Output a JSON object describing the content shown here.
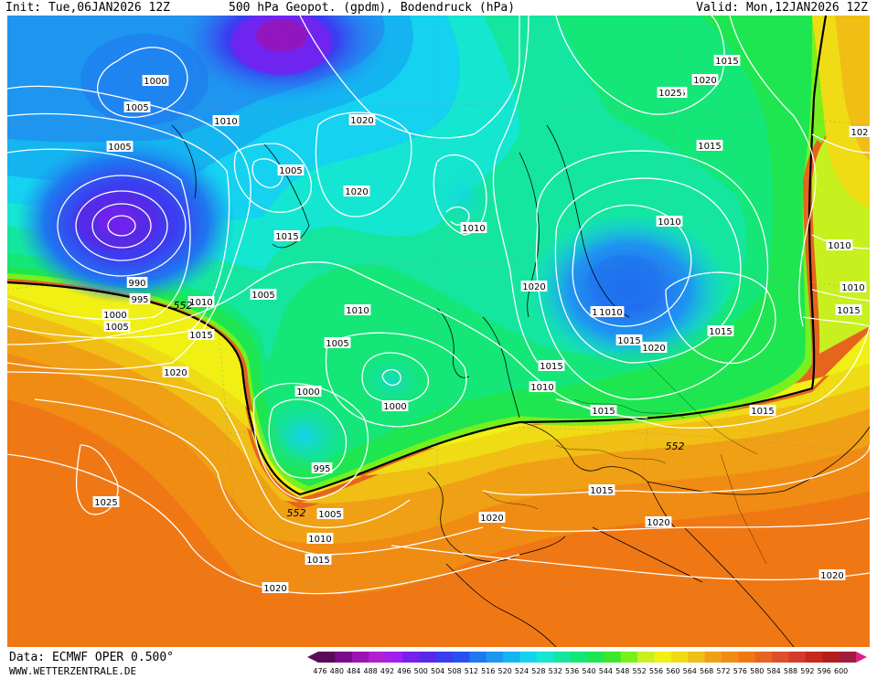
{
  "header": {
    "init": "Init: Tue,06JAN2026 12Z",
    "title": "500 hPa Geopot. (gpdm), Bodendruck (hPa)",
    "valid": "Valid: Mon,12JAN2026 12Z"
  },
  "footer": {
    "source": "Data: ECMWF OPER 0.500°",
    "website": "WWW.WETTERZENTRALE.DE"
  },
  "legend": {
    "values": [
      "476",
      "480",
      "484",
      "488",
      "492",
      "496",
      "500",
      "504",
      "508",
      "512",
      "516",
      "520",
      "524",
      "528",
      "532",
      "536",
      "540",
      "544",
      "548",
      "552",
      "556",
      "560",
      "564",
      "568",
      "572",
      "576",
      "580",
      "584",
      "588",
      "592",
      "596",
      "600"
    ],
    "colors": [
      "#5a0a5a",
      "#7a0a8a",
      "#9a14b4",
      "#b41ed2",
      "#a020f0",
      "#7820f0",
      "#5a28e6",
      "#3c3cf0",
      "#2850f0",
      "#1e78f0",
      "#1e96f0",
      "#14b4f0",
      "#14d2f0",
      "#14e6d2",
      "#14e6a0",
      "#14e678",
      "#1ee650",
      "#3ce628",
      "#78f01e",
      "#c8f01e",
      "#f0f014",
      "#f0dc14",
      "#f0be14",
      "#f0a014",
      "#f08c14",
      "#f07814",
      "#e6641e",
      "#dc5028",
      "#d23c28",
      "#c8281e",
      "#b41e1e",
      "#a01e3c"
    ]
  },
  "isobar_labels": [
    {
      "text": "1000"
    },
    {
      "text": "1005"
    },
    {
      "text": "1010"
    },
    {
      "text": "1020"
    },
    {
      "text": "1005"
    },
    {
      "text": "1005"
    },
    {
      "text": "1020"
    },
    {
      "text": "1015"
    },
    {
      "text": "1010"
    },
    {
      "text": "1015"
    },
    {
      "text": "1025"
    },
    {
      "text": "1020"
    },
    {
      "text": "1015"
    },
    {
      "text": "102"
    },
    {
      "text": "1025"
    },
    {
      "text": "1010"
    },
    {
      "text": "1010"
    },
    {
      "text": "1020"
    },
    {
      "text": "1010"
    },
    {
      "text": "1010"
    },
    {
      "text": "990"
    },
    {
      "text": "995"
    },
    {
      "text": "1000"
    },
    {
      "text": "1005"
    },
    {
      "text": "1010"
    },
    {
      "text": "1005"
    },
    {
      "text": "1010"
    },
    {
      "text": "1015"
    },
    {
      "text": "1010"
    },
    {
      "text": "1015"
    },
    {
      "text": "1020"
    },
    {
      "text": "1015"
    },
    {
      "text": "1015"
    },
    {
      "text": "1020"
    },
    {
      "text": "1005"
    },
    {
      "text": "1015"
    },
    {
      "text": "1010"
    },
    {
      "text": "1000"
    },
    {
      "text": "1000"
    },
    {
      "text": "1015"
    },
    {
      "text": "1015"
    },
    {
      "text": "995"
    },
    {
      "text": "1025"
    },
    {
      "text": "1015"
    },
    {
      "text": "1005"
    },
    {
      "text": "1020"
    },
    {
      "text": "1020"
    },
    {
      "text": "1010"
    },
    {
      "text": "1015"
    },
    {
      "text": "1020"
    },
    {
      "text": "1020"
    }
  ],
  "contour_labels": [
    {
      "text": "552"
    },
    {
      "text": "552"
    },
    {
      "text": "552"
    }
  ]
}
